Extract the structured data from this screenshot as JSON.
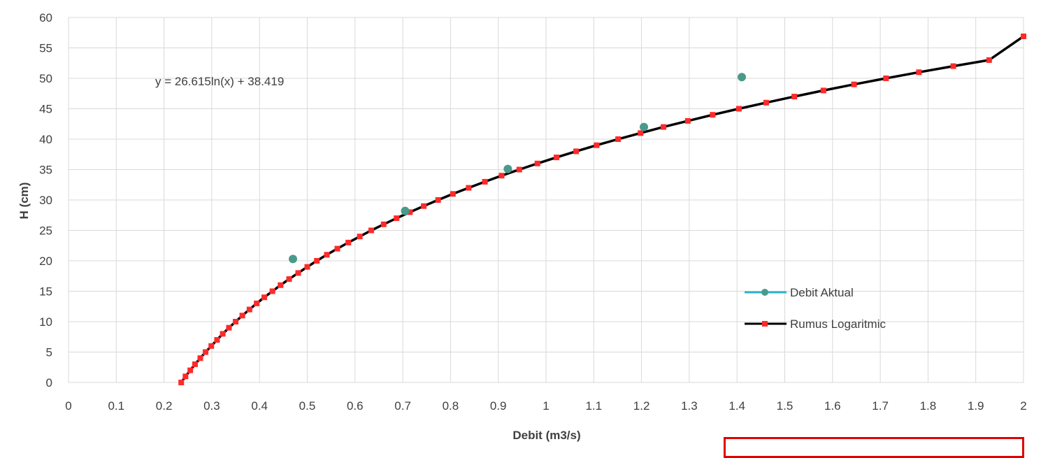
{
  "chart_data": {
    "type": "scatter",
    "title": "",
    "xlabel": "Debit (m3/s)",
    "ylabel": "H (cm)",
    "xlim": [
      0,
      2
    ],
    "ylim": [
      0,
      60
    ],
    "x_ticks": [
      "0",
      "0.1",
      "0.2",
      "0.3",
      "0.4",
      "0.5",
      "0.6",
      "0.7",
      "0.8",
      "0.9",
      "1",
      "1.1",
      "1.2",
      "1.3",
      "1.4",
      "1.5",
      "1.6",
      "1.7",
      "1.8",
      "1.9",
      "2"
    ],
    "y_ticks": [
      "0",
      "5",
      "10",
      "15",
      "20",
      "25",
      "30",
      "35",
      "40",
      "45",
      "50",
      "55",
      "60"
    ],
    "grid": true,
    "legend_position": "bottom-right",
    "annotation": "y = 26.615ln(x) + 38.419",
    "colors": {
      "debit_aktual_line": "#2cb3c8",
      "debit_aktual_marker": "#4a9a8a",
      "rumus_line": "#000000",
      "rumus_marker": "#ff2a2a",
      "grid": "#d9d9d9"
    },
    "series": [
      {
        "name": "Debit Aktual",
        "kind": "scatter",
        "x": [
          0.47,
          0.705,
          0.92,
          1.205,
          1.41
        ],
        "y": [
          20.3,
          28.2,
          35.1,
          42.0,
          50.2
        ]
      },
      {
        "name": "Rumus Logaritmic",
        "kind": "line-markers",
        "x": [
          0.236,
          0.245,
          0.255,
          0.265,
          0.276,
          0.287,
          0.299,
          0.311,
          0.323,
          0.336,
          0.35,
          0.364,
          0.379,
          0.394,
          0.41,
          0.427,
          0.444,
          0.462,
          0.481,
          0.5,
          0.52,
          0.541,
          0.563,
          0.586,
          0.61,
          0.634,
          0.66,
          0.687,
          0.715,
          0.744,
          0.774,
          0.805,
          0.838,
          0.872,
          0.907,
          0.944,
          0.982,
          1.022,
          1.063,
          1.106,
          1.151,
          1.198,
          1.246,
          1.297,
          1.349,
          1.404,
          1.461,
          1.52,
          1.581,
          1.645,
          1.712,
          1.781,
          1.853,
          1.928,
          2.0
        ],
        "y": [
          0.0,
          1.0,
          2.0,
          3.0,
          4.0,
          5.0,
          6.0,
          7.0,
          8.0,
          9.0,
          10.0,
          11.0,
          12.0,
          13.0,
          14.0,
          15.0,
          16.0,
          17.0,
          18.0,
          19.0,
          20.0,
          21.0,
          22.0,
          23.0,
          24.0,
          25.0,
          26.0,
          27.0,
          28.0,
          29.0,
          30.0,
          31.0,
          32.0,
          33.0,
          34.0,
          35.0,
          36.0,
          37.0,
          38.0,
          39.0,
          40.0,
          41.0,
          42.0,
          43.0,
          44.0,
          45.0,
          46.0,
          47.0,
          48.0,
          49.0,
          50.0,
          51.0,
          52.0,
          53.0,
          56.9
        ]
      }
    ]
  }
}
